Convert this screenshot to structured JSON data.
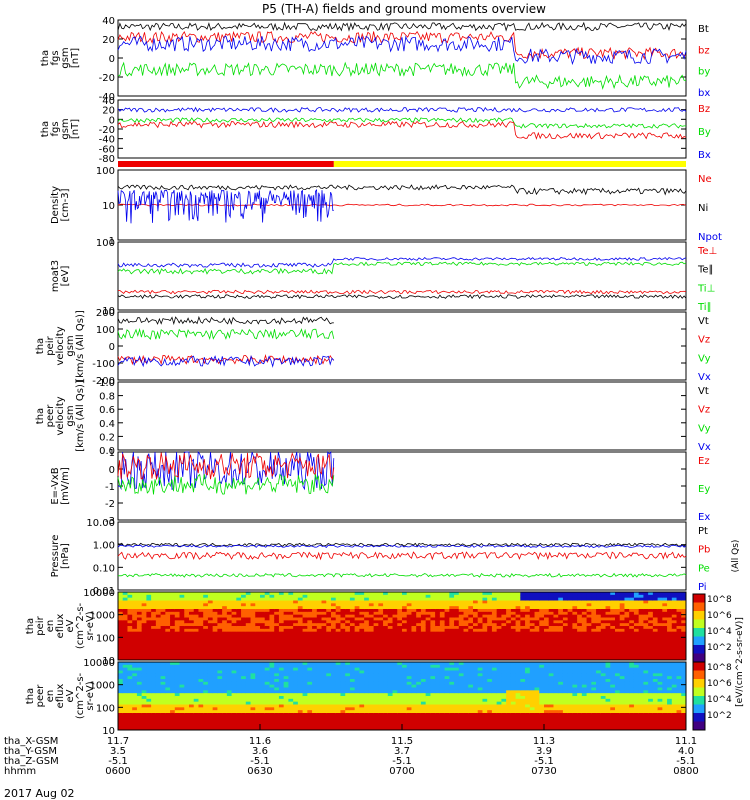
{
  "title": "P5 (TH-A) fields and ground moments overview",
  "date": "2017 Aug 02",
  "colors": {
    "black": "#000000",
    "red": "#ee0000",
    "green": "#00dd00",
    "blue": "#0000ee",
    "yellow": "#ffff00"
  },
  "chart_data": [
    {
      "type": "line",
      "ylabel": [
        "tha",
        "fgs",
        "gsm",
        "[nT]"
      ],
      "ylim": [
        -40,
        40
      ],
      "ticks": [
        "40",
        "20",
        "0",
        "-20",
        "-40"
      ],
      "series": [
        {
          "name": "Bt",
          "color": "#000000"
        },
        {
          "name": "bz",
          "color": "#ee0000"
        },
        {
          "name": "by",
          "color": "#00dd00"
        },
        {
          "name": "bx",
          "color": "#0000ee"
        }
      ]
    },
    {
      "type": "line",
      "ylabel": [
        "tha",
        "fgs",
        "gsm",
        "[nT]"
      ],
      "ylim": [
        -90,
        40
      ],
      "ticks": [
        "40",
        "20",
        "0",
        "-20",
        "-40",
        "-60",
        "-80"
      ],
      "series": [
        {
          "name": "Bz",
          "color": "#ee0000"
        },
        {
          "name": "By",
          "color": "#00dd00"
        },
        {
          "name": "Bx",
          "color": "#0000ee"
        }
      ]
    },
    {
      "type": "line",
      "ylabel": [
        "Density",
        "[cm-3]"
      ],
      "ylim": [
        1,
        100
      ],
      "log": true,
      "ticks": [
        "100",
        "10",
        "1"
      ],
      "series": [
        {
          "name": "Ne",
          "color": "#ee0000"
        },
        {
          "name": "Ni",
          "color": "#000000"
        },
        {
          "name": "Npot",
          "color": "#0000ee"
        }
      ]
    },
    {
      "type": "line",
      "ylabel": [
        "moat3",
        "[eV]"
      ],
      "ylim": [
        10,
        1000
      ],
      "log": true,
      "ticks": [
        "100",
        "10"
      ],
      "series": [
        {
          "name": "Te⊥",
          "color": "#ee0000"
        },
        {
          "name": "Te∥",
          "color": "#000000"
        },
        {
          "name": "Ti⊥",
          "color": "#00dd00"
        },
        {
          "name": "Ti∥",
          "color": "#00dd00"
        }
      ]
    },
    {
      "type": "line",
      "ylabel": [
        "tha",
        "peir",
        "velocity",
        "gsm",
        "[km/s (All Qs)]"
      ],
      "ylim": [
        -200,
        200
      ],
      "ticks": [
        "200",
        "100",
        "0",
        "-100",
        "-200"
      ],
      "series": [
        {
          "name": "Vt",
          "color": "#000000"
        },
        {
          "name": "Vz",
          "color": "#ee0000"
        },
        {
          "name": "Vy",
          "color": "#00dd00"
        },
        {
          "name": "Vx",
          "color": "#0000ee"
        }
      ]
    },
    {
      "type": "line",
      "ylabel": [
        "tha",
        "peer",
        "velocity",
        "gsm",
        "[km/s (All Qs)]"
      ],
      "ylim": [
        0,
        1
      ],
      "ticks": [
        "1.0",
        "0.8",
        "0.6",
        "0.4",
        "0.2",
        "0.0"
      ],
      "series": [
        {
          "name": "Vt",
          "color": "#000000"
        },
        {
          "name": "Vz",
          "color": "#ee0000"
        },
        {
          "name": "Vy",
          "color": "#00dd00"
        },
        {
          "name": "Vx",
          "color": "#0000ee"
        }
      ]
    },
    {
      "type": "line",
      "ylabel": [
        "E=-VxB",
        "[mV/m]"
      ],
      "ylim": [
        -3,
        1
      ],
      "ticks": [
        "1",
        "0",
        "-1",
        "-2",
        "-3"
      ],
      "series": [
        {
          "name": "Ez",
          "color": "#ee0000"
        },
        {
          "name": "Ey",
          "color": "#00dd00"
        },
        {
          "name": "Ex",
          "color": "#0000ee"
        }
      ]
    },
    {
      "type": "line",
      "ylabel": [
        "Pressure",
        "[nPa]"
      ],
      "ylim": [
        0.01,
        10
      ],
      "log": true,
      "ticks": [
        "10.00",
        "1.00",
        "0.10",
        "0.01"
      ],
      "series": [
        {
          "name": "Pt",
          "color": "#000000"
        },
        {
          "name": "Pb",
          "color": "#ee0000"
        },
        {
          "name": "Pe",
          "color": "#00dd00"
        },
        {
          "name": "Pi",
          "color": "#0000ee"
        }
      ],
      "right_label": "(All Qs)"
    },
    {
      "type": "heatmap",
      "ylabel": [
        "tha",
        "peir",
        "en",
        "eflux",
        "eV",
        "(cm^2-s-",
        "sr-eV)"
      ],
      "ticks": [
        "10000",
        "1000",
        "100",
        "10"
      ],
      "zlim": [
        100,
        100000000
      ]
    },
    {
      "type": "heatmap",
      "ylabel": [
        "tha",
        "peer",
        "en",
        "eflux",
        "eV",
        "(cm^2-s-",
        "sr-eV)"
      ],
      "ticks": [
        "10000",
        "1000",
        "100",
        "10"
      ],
      "zlim": [
        100,
        100000000
      ]
    }
  ],
  "colorbar": {
    "label": "[eV/(cm^2-s-sr-eV)]",
    "ticks_top": [
      "10^8",
      "10^6",
      "10^4",
      "10^2"
    ],
    "ticks_bottom": [
      "10^8",
      "10^6",
      "10^4",
      "10^2"
    ]
  },
  "quality_bar": {
    "segments": [
      {
        "from": 0.0,
        "to": 0.38,
        "color": "#ee0000"
      },
      {
        "from": 0.38,
        "to": 1.0,
        "color": "#ffff00"
      }
    ]
  },
  "xaxis": {
    "rows": [
      {
        "label": "tha_X-GSM",
        "values": [
          "11.7",
          "11.6",
          "11.5",
          "11.3",
          "11.1"
        ]
      },
      {
        "label": "tha_Y-GSM",
        "values": [
          "3.5",
          "3.6",
          "3.7",
          "3.9",
          "4.0"
        ]
      },
      {
        "label": "tha_Z-GSM",
        "values": [
          "-5.1",
          "-5.1",
          "-5.1",
          "-5.1",
          "-5.1"
        ]
      },
      {
        "label": "hhmm",
        "values": [
          "0600",
          "0630",
          "0700",
          "0730",
          "0800"
        ]
      }
    ]
  }
}
